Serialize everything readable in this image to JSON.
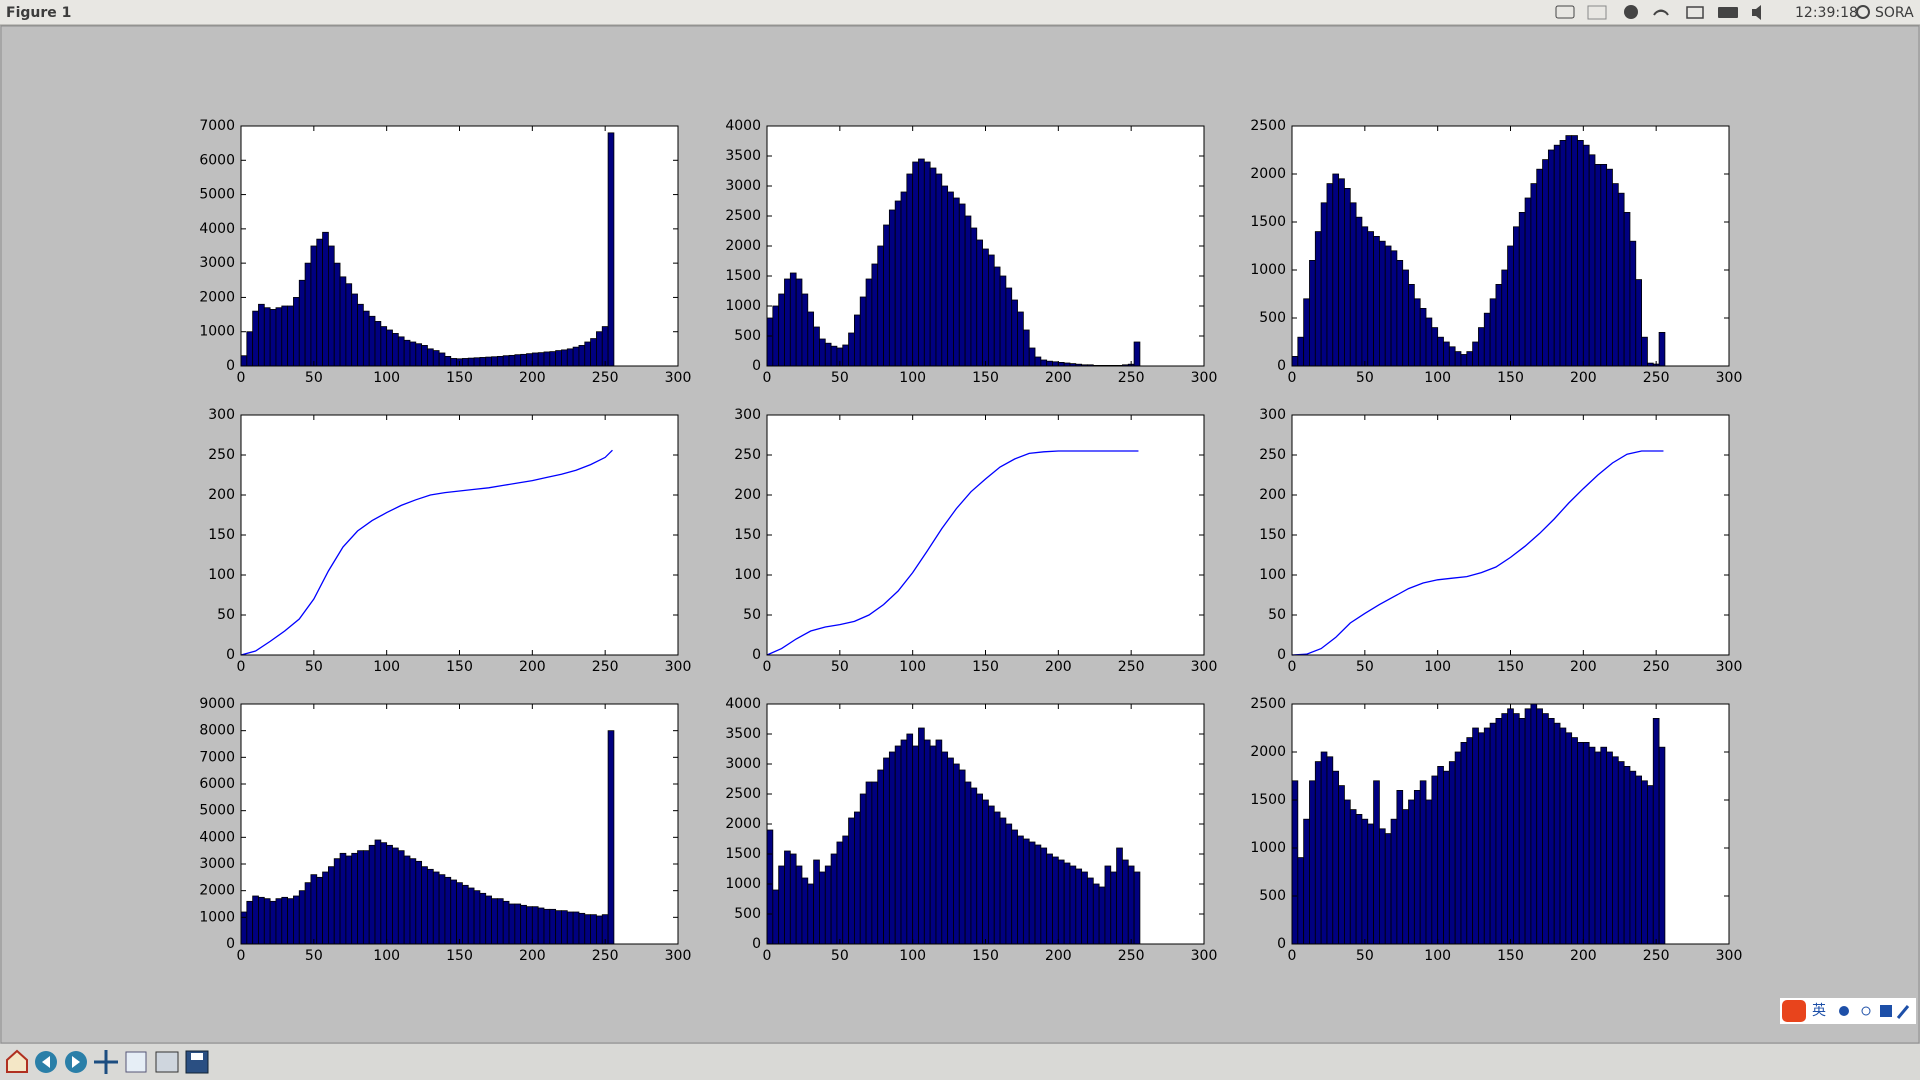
{
  "window": {
    "title": "Figure 1",
    "clock": "12:39:18",
    "user": "SORA",
    "ime": "英"
  },
  "chart_data": [
    {
      "type": "histogram",
      "color": "#000080",
      "xlim": [
        0,
        300
      ],
      "xticks": [
        0,
        50,
        100,
        150,
        200,
        250,
        300
      ],
      "ylim": [
        0,
        7000
      ],
      "yticks": [
        0,
        1000,
        2000,
        3000,
        4000,
        5000,
        6000,
        7000
      ],
      "bins": [
        0,
        4,
        8,
        12,
        16,
        20,
        24,
        28,
        32,
        36,
        40,
        44,
        48,
        52,
        56,
        60,
        64,
        68,
        72,
        76,
        80,
        84,
        88,
        92,
        96,
        100,
        104,
        108,
        112,
        116,
        120,
        124,
        128,
        132,
        136,
        140,
        144,
        148,
        152,
        156,
        160,
        164,
        168,
        172,
        176,
        180,
        184,
        188,
        192,
        196,
        200,
        204,
        208,
        212,
        216,
        220,
        224,
        228,
        232,
        236,
        240,
        244,
        248,
        252,
        256
      ],
      "counts": [
        300,
        1000,
        1600,
        1800,
        1700,
        1650,
        1700,
        1750,
        1750,
        2000,
        2500,
        3000,
        3500,
        3700,
        3900,
        3500,
        3000,
        2600,
        2400,
        2100,
        1800,
        1600,
        1450,
        1300,
        1150,
        1050,
        950,
        850,
        750,
        700,
        650,
        600,
        500,
        450,
        380,
        280,
        220,
        210,
        220,
        230,
        240,
        250,
        260,
        270,
        280,
        300,
        310,
        330,
        340,
        360,
        380,
        390,
        410,
        420,
        450,
        470,
        500,
        550,
        600,
        700,
        800,
        1000,
        1150,
        6800
      ]
    },
    {
      "type": "histogram",
      "color": "#000080",
      "xlim": [
        0,
        300
      ],
      "xticks": [
        0,
        50,
        100,
        150,
        200,
        250,
        300
      ],
      "ylim": [
        0,
        4000
      ],
      "yticks": [
        0,
        500,
        1000,
        1500,
        2000,
        2500,
        3000,
        3500,
        4000
      ],
      "bins": [
        0,
        4,
        8,
        12,
        16,
        20,
        24,
        28,
        32,
        36,
        40,
        44,
        48,
        52,
        56,
        60,
        64,
        68,
        72,
        76,
        80,
        84,
        88,
        92,
        96,
        100,
        104,
        108,
        112,
        116,
        120,
        124,
        128,
        132,
        136,
        140,
        144,
        148,
        152,
        156,
        160,
        164,
        168,
        172,
        176,
        180,
        184,
        188,
        192,
        196,
        200,
        204,
        208,
        212,
        216,
        220,
        224,
        228,
        232,
        236,
        240,
        244,
        248,
        252,
        256
      ],
      "counts": [
        800,
        1000,
        1200,
        1450,
        1550,
        1450,
        1200,
        900,
        650,
        450,
        380,
        330,
        300,
        350,
        550,
        850,
        1150,
        1450,
        1700,
        2000,
        2350,
        2600,
        2750,
        2900,
        3200,
        3400,
        3450,
        3400,
        3300,
        3200,
        3000,
        2900,
        2800,
        2700,
        2500,
        2300,
        2100,
        1950,
        1850,
        1650,
        1500,
        1300,
        1100,
        900,
        600,
        300,
        150,
        100,
        80,
        70,
        60,
        50,
        40,
        30,
        20,
        20,
        10,
        10,
        10,
        10,
        10,
        20,
        30,
        400
      ]
    },
    {
      "type": "histogram",
      "color": "#000080",
      "xlim": [
        0,
        300
      ],
      "xticks": [
        0,
        50,
        100,
        150,
        200,
        250,
        300
      ],
      "ylim": [
        0,
        2500
      ],
      "yticks": [
        0,
        500,
        1000,
        1500,
        2000,
        2500
      ],
      "bins": [
        0,
        4,
        8,
        12,
        16,
        20,
        24,
        28,
        32,
        36,
        40,
        44,
        48,
        52,
        56,
        60,
        64,
        68,
        72,
        76,
        80,
        84,
        88,
        92,
        96,
        100,
        104,
        108,
        112,
        116,
        120,
        124,
        128,
        132,
        136,
        140,
        144,
        148,
        152,
        156,
        160,
        164,
        168,
        172,
        176,
        180,
        184,
        188,
        192,
        196,
        200,
        204,
        208,
        212,
        216,
        220,
        224,
        228,
        232,
        236,
        240,
        244,
        248,
        252,
        256
      ],
      "counts": [
        100,
        300,
        700,
        1100,
        1400,
        1700,
        1900,
        2000,
        1950,
        1850,
        1700,
        1550,
        1450,
        1400,
        1350,
        1300,
        1250,
        1200,
        1100,
        1000,
        850,
        700,
        600,
        500,
        400,
        300,
        250,
        200,
        150,
        120,
        150,
        250,
        400,
        550,
        700,
        850,
        1000,
        1250,
        1450,
        1600,
        1750,
        1900,
        2050,
        2150,
        2250,
        2300,
        2350,
        2400,
        2400,
        2350,
        2300,
        2200,
        2100,
        2100,
        2050,
        1900,
        1800,
        1600,
        1300,
        900,
        300,
        30,
        20,
        350
      ]
    },
    {
      "type": "line",
      "color": "#0000ff",
      "xlim": [
        0,
        300
      ],
      "xticks": [
        0,
        50,
        100,
        150,
        200,
        250,
        300
      ],
      "ylim": [
        0,
        300
      ],
      "yticks": [
        0,
        50,
        100,
        150,
        200,
        250,
        300
      ],
      "x": [
        0,
        10,
        20,
        30,
        40,
        50,
        60,
        70,
        80,
        90,
        100,
        110,
        120,
        130,
        140,
        150,
        160,
        170,
        180,
        190,
        200,
        210,
        220,
        230,
        240,
        250,
        255
      ],
      "values": [
        0,
        5,
        17,
        30,
        45,
        70,
        105,
        135,
        155,
        168,
        178,
        187,
        194,
        200,
        203,
        205,
        207,
        209,
        212,
        215,
        218,
        222,
        226,
        231,
        238,
        247,
        256
      ]
    },
    {
      "type": "line",
      "color": "#0000ff",
      "xlim": [
        0,
        300
      ],
      "xticks": [
        0,
        50,
        100,
        150,
        200,
        250,
        300
      ],
      "ylim": [
        0,
        300
      ],
      "yticks": [
        0,
        50,
        100,
        150,
        200,
        250,
        300
      ],
      "x": [
        0,
        10,
        20,
        30,
        40,
        50,
        60,
        70,
        80,
        90,
        100,
        110,
        120,
        130,
        140,
        150,
        160,
        170,
        180,
        190,
        200,
        210,
        220,
        230,
        240,
        250,
        255
      ],
      "values": [
        0,
        8,
        20,
        30,
        35,
        38,
        42,
        50,
        63,
        80,
        103,
        130,
        158,
        183,
        204,
        220,
        235,
        245,
        252,
        254,
        255,
        255,
        255,
        255,
        255,
        255,
        255
      ]
    },
    {
      "type": "line",
      "color": "#0000ff",
      "xlim": [
        0,
        300
      ],
      "xticks": [
        0,
        50,
        100,
        150,
        200,
        250,
        300
      ],
      "ylim": [
        0,
        300
      ],
      "yticks": [
        0,
        50,
        100,
        150,
        200,
        250,
        300
      ],
      "x": [
        0,
        10,
        20,
        30,
        40,
        50,
        60,
        70,
        80,
        90,
        100,
        110,
        120,
        130,
        140,
        150,
        160,
        170,
        180,
        190,
        200,
        210,
        220,
        230,
        240,
        250,
        255
      ],
      "values": [
        0,
        1,
        8,
        22,
        40,
        52,
        63,
        73,
        83,
        90,
        94,
        96,
        98,
        103,
        110,
        122,
        136,
        152,
        170,
        190,
        208,
        225,
        240,
        251,
        255,
        255,
        255
      ]
    },
    {
      "type": "histogram",
      "color": "#000080",
      "xlim": [
        0,
        300
      ],
      "xticks": [
        0,
        50,
        100,
        150,
        200,
        250,
        300
      ],
      "ylim": [
        0,
        9000
      ],
      "yticks": [
        0,
        1000,
        2000,
        3000,
        4000,
        5000,
        6000,
        7000,
        8000,
        9000
      ],
      "bins": [
        0,
        4,
        8,
        12,
        16,
        20,
        24,
        28,
        32,
        36,
        40,
        44,
        48,
        52,
        56,
        60,
        64,
        68,
        72,
        76,
        80,
        84,
        88,
        92,
        96,
        100,
        104,
        108,
        112,
        116,
        120,
        124,
        128,
        132,
        136,
        140,
        144,
        148,
        152,
        156,
        160,
        164,
        168,
        172,
        176,
        180,
        184,
        188,
        192,
        196,
        200,
        204,
        208,
        212,
        216,
        220,
        224,
        228,
        232,
        236,
        240,
        244,
        248,
        252,
        256
      ],
      "counts": [
        1200,
        1600,
        1800,
        1750,
        1700,
        1600,
        1700,
        1750,
        1700,
        1800,
        2000,
        2300,
        2600,
        2500,
        2700,
        2900,
        3200,
        3400,
        3300,
        3400,
        3500,
        3500,
        3700,
        3900,
        3800,
        3700,
        3600,
        3500,
        3300,
        3200,
        3100,
        2900,
        2800,
        2700,
        2600,
        2500,
        2400,
        2300,
        2200,
        2100,
        2000,
        1900,
        1800,
        1700,
        1700,
        1600,
        1500,
        1500,
        1450,
        1400,
        1400,
        1350,
        1300,
        1300,
        1250,
        1250,
        1200,
        1200,
        1150,
        1100,
        1100,
        1050,
        1100,
        8000
      ]
    },
    {
      "type": "histogram",
      "color": "#000080",
      "xlim": [
        0,
        300
      ],
      "xticks": [
        0,
        50,
        100,
        150,
        200,
        250,
        300
      ],
      "ylim": [
        0,
        4000
      ],
      "yticks": [
        0,
        500,
        1000,
        1500,
        2000,
        2500,
        3000,
        3500,
        4000
      ],
      "bins": [
        0,
        4,
        8,
        12,
        16,
        20,
        24,
        28,
        32,
        36,
        40,
        44,
        48,
        52,
        56,
        60,
        64,
        68,
        72,
        76,
        80,
        84,
        88,
        92,
        96,
        100,
        104,
        108,
        112,
        116,
        120,
        124,
        128,
        132,
        136,
        140,
        144,
        148,
        152,
        156,
        160,
        164,
        168,
        172,
        176,
        180,
        184,
        188,
        192,
        196,
        200,
        204,
        208,
        212,
        216,
        220,
        224,
        228,
        232,
        236,
        240,
        244,
        248,
        252,
        256
      ],
      "counts": [
        1900,
        900,
        1300,
        1550,
        1500,
        1300,
        1100,
        1000,
        1400,
        1200,
        1300,
        1500,
        1700,
        1800,
        2100,
        2200,
        2500,
        2700,
        2700,
        2900,
        3100,
        3200,
        3300,
        3400,
        3500,
        3300,
        3600,
        3400,
        3300,
        3400,
        3200,
        3100,
        3000,
        2900,
        2700,
        2600,
        2500,
        2400,
        2300,
        2200,
        2100,
        2000,
        1900,
        1800,
        1750,
        1700,
        1650,
        1600,
        1500,
        1450,
        1400,
        1350,
        1300,
        1250,
        1200,
        1100,
        1000,
        950,
        1300,
        1200,
        1600,
        1400,
        1300,
        1200
      ]
    },
    {
      "type": "histogram",
      "color": "#000080",
      "xlim": [
        0,
        300
      ],
      "xticks": [
        0,
        50,
        100,
        150,
        200,
        250,
        300
      ],
      "ylim": [
        0,
        2500
      ],
      "yticks": [
        0,
        500,
        1000,
        1500,
        2000,
        2500
      ],
      "bins": [
        0,
        4,
        8,
        12,
        16,
        20,
        24,
        28,
        32,
        36,
        40,
        44,
        48,
        52,
        56,
        60,
        64,
        68,
        72,
        76,
        80,
        84,
        88,
        92,
        96,
        100,
        104,
        108,
        112,
        116,
        120,
        124,
        128,
        132,
        136,
        140,
        144,
        148,
        152,
        156,
        160,
        164,
        168,
        172,
        176,
        180,
        184,
        188,
        192,
        196,
        200,
        204,
        208,
        212,
        216,
        220,
        224,
        228,
        232,
        236,
        240,
        244,
        248,
        252,
        256
      ],
      "counts": [
        1700,
        900,
        1300,
        1700,
        1900,
        2000,
        1950,
        1800,
        1650,
        1500,
        1400,
        1350,
        1300,
        1250,
        1700,
        1200,
        1150,
        1300,
        1600,
        1400,
        1500,
        1600,
        1700,
        1500,
        1750,
        1850,
        1800,
        1900,
        2000,
        2100,
        2150,
        2250,
        2200,
        2250,
        2300,
        2350,
        2400,
        2450,
        2400,
        2350,
        2450,
        2500,
        2450,
        2400,
        2350,
        2300,
        2250,
        2200,
        2150,
        2100,
        2100,
        2050,
        2000,
        2050,
        2000,
        1950,
        1900,
        1850,
        1800,
        1750,
        1700,
        1650,
        2350,
        2050
      ]
    }
  ]
}
